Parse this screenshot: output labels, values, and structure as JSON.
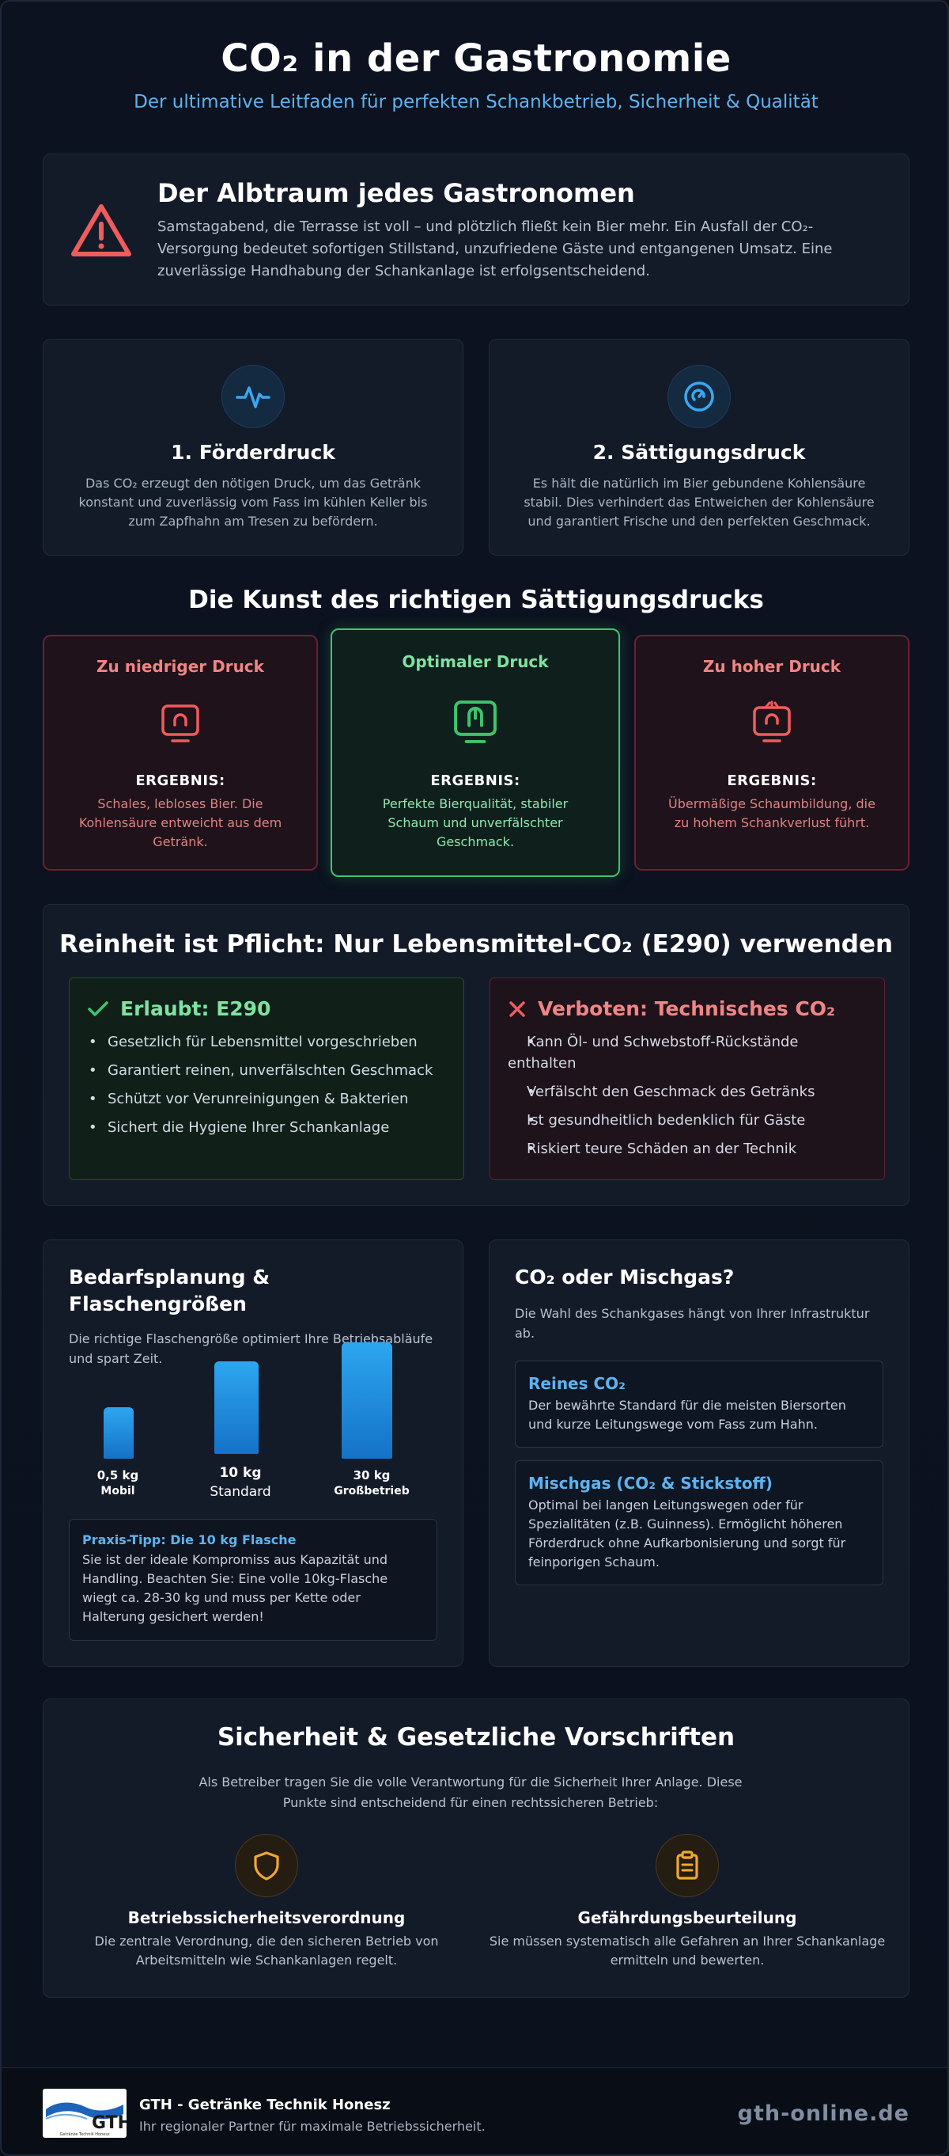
{
  "header": {
    "title": "CO₂ in der Gastronomie",
    "subtitle": "Der ultimative Leitfaden für perfekten Schankbetrieb, Sicherheit & Qualität"
  },
  "alert": {
    "icon": "warning-triangle-icon",
    "title": "Der Albtraum jedes Gastronomen",
    "text": "Samstagabend, die Terrasse ist voll – und plötzlich fließt kein Bier mehr. Ein Ausfall der CO₂-Versorgung bedeutet sofortigen Stillstand, unzufriedene Gäste und entgangenen Umsatz. Eine zuverlässige Handhabung der Schankanlage ist erfolgsentscheidend."
  },
  "pressure": [
    {
      "icon": "pulse-icon",
      "title": "1. Förderdruck",
      "text": "Das CO₂ erzeugt den nötigen Druck, um das Getränk konstant und zuverlässig vom Fass im kühlen Keller bis zum Zapfhahn am Tresen zu befördern."
    },
    {
      "icon": "gauge-icon",
      "title": "2. Sättigungsdruck",
      "text": "Es hält die natürlich im Bier gebundene Kohlensäure stabil. Dies verhindert das Entweichen der Kohlensäure und garantiert Frische und den perfekten Geschmack."
    }
  ],
  "saturation": {
    "title": "Die Kunst des richtigen Sättigungsdrucks",
    "levels": [
      {
        "title": "Zu niedriger Druck",
        "icon": "low-pressure-icon",
        "result_label": "ERGEBNIS:",
        "result": "Schales, lebloses Bier. Die Kohlensäure entweicht aus dem Getränk."
      },
      {
        "title": "Optimaler Druck",
        "icon": "optimal-pressure-icon",
        "result_label": "ERGEBNIS:",
        "result": "Perfekte Bierqualität, stabiler Schaum und unverfälschter Geschmack."
      },
      {
        "title": "Zu hoher Druck",
        "icon": "high-pressure-icon",
        "result_label": "ERGEBNIS:",
        "result": "Übermäßige Schaumbildung, die zu hohem Schankverlust führt."
      }
    ]
  },
  "purity": {
    "title": "Reinheit ist Pflicht: Nur Lebensmittel-CO₂ (E290) verwenden",
    "allowed": {
      "title": "Erlaubt: E290",
      "items": [
        "Gesetzlich für Lebensmittel vorgeschrieben",
        "Garantiert reinen, unverfälschten Geschmack",
        "Schützt vor Verunreinigungen & Bakterien",
        "Sichert die Hygiene Ihrer Schankanlage"
      ]
    },
    "forbidden": {
      "title": "Verboten: Technisches CO₂",
      "items": [
        "Kann Öl- und Schwebstoff-Rückstände enthalten",
        "Verfälscht den Geschmack des Getränks",
        "Ist gesundheitlich bedenklich für Gäste",
        "Riskiert teure Schäden an der Technik"
      ]
    }
  },
  "planning": {
    "title": "Bedarfsplanung & Flaschengrößen",
    "subtitle": "Die richtige Flaschengröße optimiert Ihre Betriebsabläufe und spart Zeit.",
    "chart_data": {
      "type": "bar",
      "categories": [
        "Mobil",
        "Standard",
        "Großbetrieb"
      ],
      "category_weights": [
        "0,5 kg",
        "10 kg",
        "30 kg"
      ],
      "values": [
        0.5,
        10,
        30
      ],
      "bar_heights_relative": [
        0.43,
        0.78,
        0.98
      ],
      "color": "#1e8fdf"
    },
    "tip": {
      "title": "Praxis-Tipp: Die 10 kg Flasche",
      "text": "Sie ist der ideale Kompromiss aus Kapazität und Handling. Beachten Sie: Eine volle 10kg-Flasche wiegt ca. 28-30 kg und muss per Kette oder Halterung gesichert werden!"
    }
  },
  "gas": {
    "title": "CO₂ oder Mischgas?",
    "subtitle": "Die Wahl des Schankgases hängt von Ihrer Infrastruktur ab.",
    "options": [
      {
        "title": "Reines CO₂",
        "text": "Der bewährte Standard für die meisten Biersorten und kurze Leitungswege vom Fass zum Hahn."
      },
      {
        "title": "Mischgas (CO₂ & Stickstoff)",
        "text": "Optimal bei langen Leitungswegen oder für Spezialitäten (z.B. Guinness). Ermöglicht höheren Förderdruck ohne Aufkarbonisierung und sorgt für feinporigen Schaum."
      }
    ]
  },
  "safety": {
    "title": "Sicherheit & Gesetzliche Vorschriften",
    "subtitle": "Als Betreiber tragen Sie die volle Verantwortung für die Sicherheit Ihrer Anlage. Diese Punkte sind entscheidend für einen rechtssicheren Betrieb:",
    "items": [
      {
        "icon": "shield-icon",
        "title": "Betriebssicherheitsverordnung",
        "text": "Die zentrale Verordnung, die den sicheren Betrieb von Arbeitsmitteln wie Schankanlagen regelt."
      },
      {
        "icon": "clipboard-icon",
        "title": "Gefährdungsbeurteilung",
        "text": "Sie müssen systematisch alle Gefahren an Ihrer Schankanlage ermitteln und bewerten."
      }
    ]
  },
  "footer": {
    "logo_text": "GTH",
    "logo_subtext": "Getränke Technik Honesz",
    "company": "GTH - Getränke Technik Honesz",
    "tagline": "Ihr regionaler Partner für maximale Betriebssicherheit.",
    "url": "gth-online.de"
  },
  "colors": {
    "background": "#0b111d",
    "card": "#131a28",
    "accent_blue": "#5eb3f0",
    "success": "#3fc46e",
    "danger": "#f08585",
    "warning": "#f0a830"
  }
}
